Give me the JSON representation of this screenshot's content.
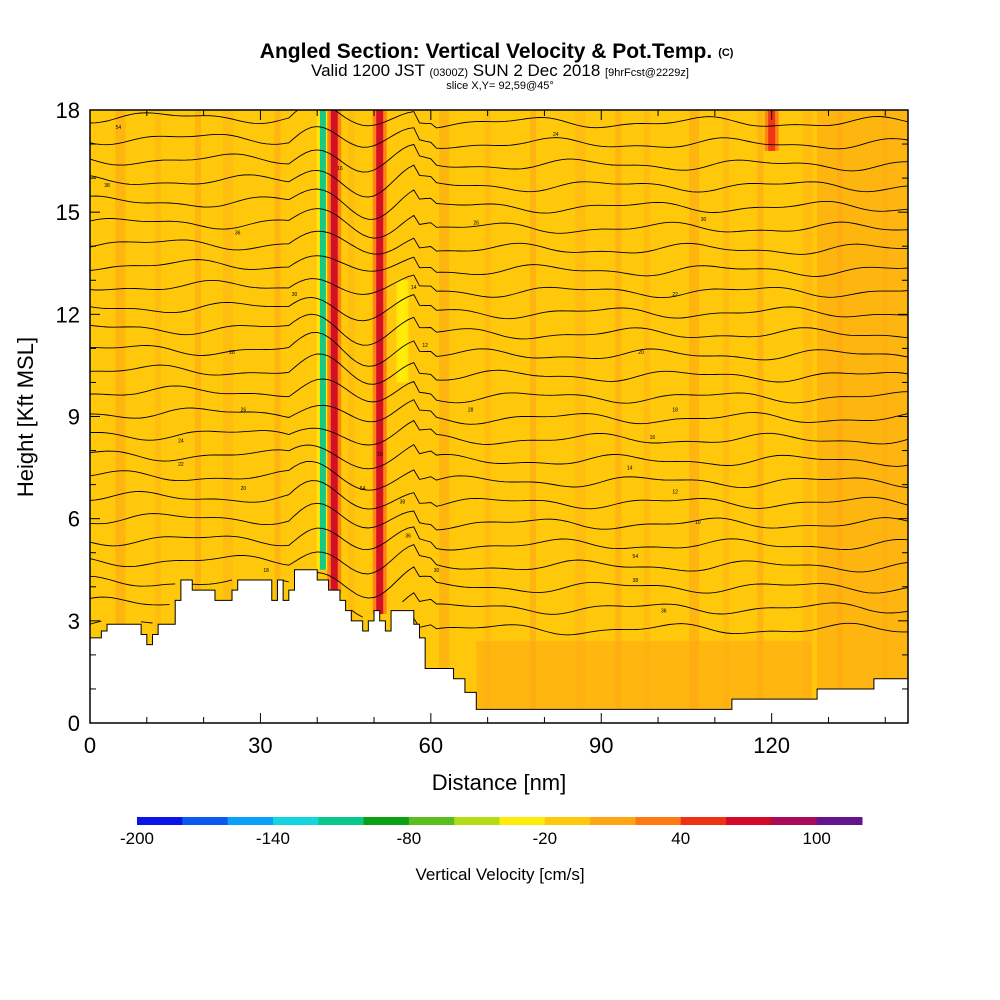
{
  "header": {
    "title": "Angled Section: Vertical Velocity & Pot.Temp.",
    "title_mark": "(C)",
    "valid_prefix": "Valid 1200 JST",
    "valid_zone": "(0300Z)",
    "valid_date": "SUN 2 Dec 2018",
    "forecast": "[9hrFcst@2229z]",
    "slice": "slice X,Y= 92,59@45°"
  },
  "chart_data": {
    "type": "heatmap",
    "title": "Angled Section: Vertical Velocity & Pot.Temp.",
    "xlabel": "Distance [nm]",
    "ylabel": "Height [Kft MSL]",
    "xlim": [
      0,
      144
    ],
    "ylim": [
      0,
      18
    ],
    "x_ticks": [
      "0",
      "30",
      "60",
      "90",
      "120"
    ],
    "x_tick_values": [
      0,
      30,
      60,
      90,
      120
    ],
    "y_ticks": [
      "0",
      "3",
      "6",
      "9",
      "12",
      "15",
      "18"
    ],
    "y_tick_values": [
      0,
      3,
      6,
      9,
      12,
      15,
      18
    ],
    "background_velocity_band": "-20 to 0",
    "terrain_profile": {
      "distance_nm": [
        0,
        2,
        3,
        8,
        9,
        10,
        11,
        12,
        14,
        15,
        16,
        17,
        18,
        20,
        22,
        24,
        25,
        26,
        28,
        30,
        32,
        33,
        34,
        35,
        36,
        37,
        38,
        39,
        40,
        42,
        44,
        45,
        46,
        48,
        49,
        50,
        51,
        52,
        53,
        56,
        57,
        58,
        59,
        60,
        61,
        62,
        64,
        66,
        68,
        70,
        80,
        90,
        100,
        110,
        113,
        120,
        127,
        128,
        135,
        138,
        144
      ],
      "height_kft": [
        2.5,
        2.7,
        2.9,
        2.9,
        2.6,
        2.3,
        2.6,
        2.9,
        2.9,
        3.6,
        4.2,
        4.2,
        3.9,
        3.9,
        3.6,
        3.6,
        3.9,
        4.2,
        4.2,
        4.2,
        3.6,
        4.2,
        3.6,
        3.9,
        4.5,
        4.5,
        4.5,
        4.5,
        4.2,
        3.9,
        3.6,
        3.3,
        3.0,
        2.7,
        3.0,
        3.3,
        3.0,
        2.7,
        3.3,
        3.3,
        2.9,
        2.5,
        1.6,
        1.6,
        1.6,
        1.6,
        1.3,
        0.9,
        0.4,
        0.4,
        0.4,
        0.4,
        0.4,
        0.4,
        0.7,
        0.7,
        0.7,
        1.0,
        1.0,
        1.3,
        1.3
      ]
    },
    "velocity_features": [
      {
        "label": "downdraft",
        "distance_nm": 41,
        "top_kft": 18,
        "bottom_kft": 4.5,
        "min_cm_s": -110
      },
      {
        "label": "updraft",
        "distance_nm": 43,
        "top_kft": 18,
        "bottom_kft": 3.8,
        "max_cm_s": 60
      },
      {
        "label": "updraft",
        "distance_nm": 51,
        "top_kft": 18,
        "bottom_kft": 3.2,
        "max_cm_s": 60
      },
      {
        "label": "downdraft",
        "distance_nm": 55,
        "top_kft": 13,
        "bottom_kft": 10,
        "min_cm_s": -40
      },
      {
        "label": "updraft",
        "distance_nm": 120,
        "top_kft": 18,
        "bottom_kft": 16.8,
        "max_cm_s": 50
      }
    ],
    "theta_contour_labels": [
      "54",
      "38",
      "36",
      "30",
      "28",
      "26",
      "24",
      "22",
      "20",
      "18",
      "16",
      "14",
      "12",
      "10"
    ],
    "colorbar": {
      "title": "Vertical Velocity [cm/s]",
      "tick_labels": [
        "-200",
        "-140",
        "-80",
        "-20",
        "40",
        "100"
      ],
      "tick_values": [
        -200,
        -140,
        -80,
        -20,
        40,
        100
      ],
      "min": -200,
      "max": 120,
      "step": 20,
      "colors": [
        "#0a14e6",
        "#0a5af0",
        "#0aa0f5",
        "#14d6e0",
        "#0ac88c",
        "#0aa014",
        "#5abe1e",
        "#b4dc14",
        "#ffec0a",
        "#ffc80a",
        "#ffa514",
        "#ff7814",
        "#f03214",
        "#d20a28",
        "#aa0a5a",
        "#64148c"
      ]
    }
  }
}
